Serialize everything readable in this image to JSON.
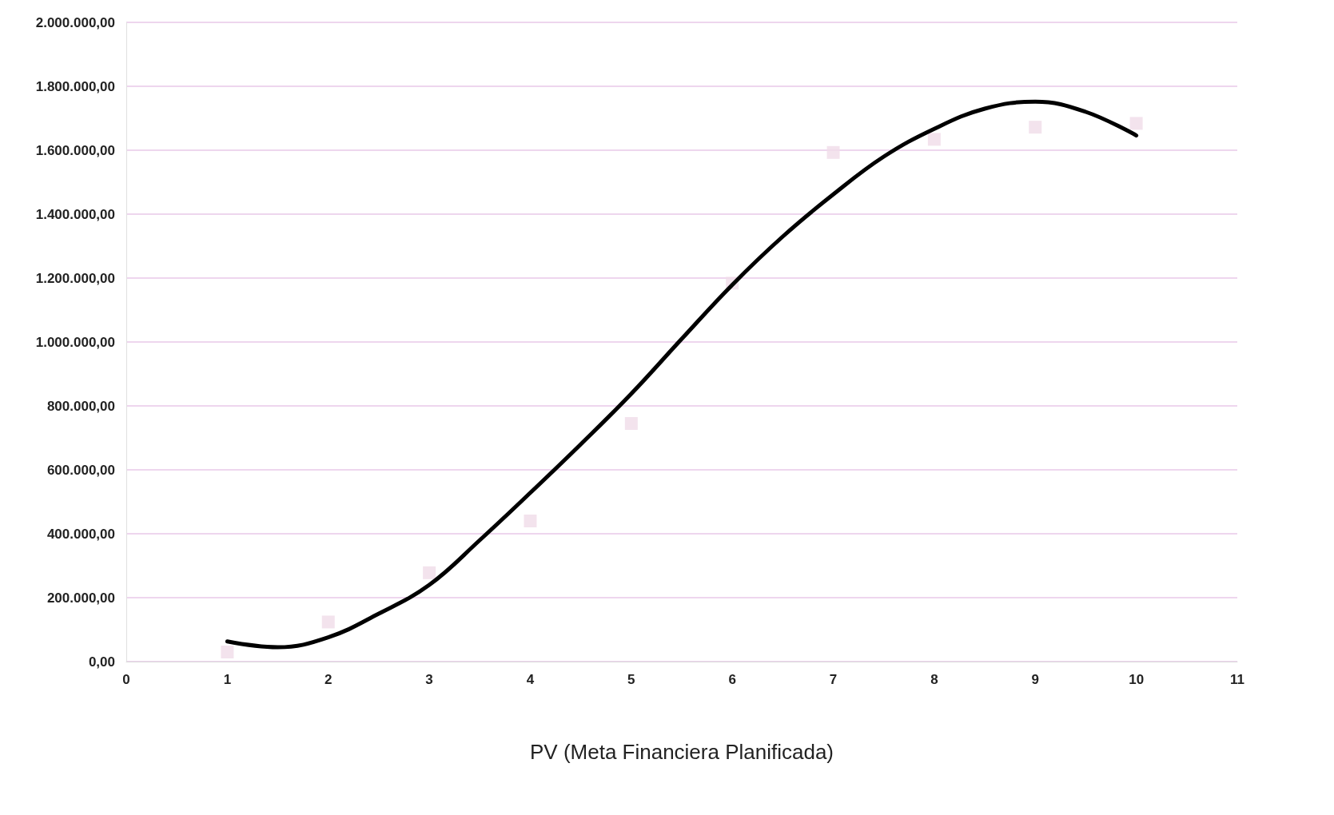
{
  "chart_data": {
    "type": "line",
    "xlabel": "PV (Meta Financiera Planificada)",
    "xlim": [
      0,
      11
    ],
    "xticks": [
      0,
      1,
      2,
      3,
      4,
      5,
      6,
      7,
      8,
      9,
      10,
      11
    ],
    "ylim": [
      0,
      2000000
    ],
    "yticks": [
      {
        "value": 0,
        "label": "0,00"
      },
      {
        "value": 200000,
        "label": "200.000,00"
      },
      {
        "value": 400000,
        "label": "400.000,00"
      },
      {
        "value": 600000,
        "label": "600.000,00"
      },
      {
        "value": 800000,
        "label": "800.000,00"
      },
      {
        "value": 1000000,
        "label": "1.000.000,00"
      },
      {
        "value": 1200000,
        "label": "1.200.000,00"
      },
      {
        "value": 1400000,
        "label": "1.400.000,00"
      },
      {
        "value": 1600000,
        "label": "1.600.000,00"
      },
      {
        "value": 1800000,
        "label": "1.800.000,00"
      },
      {
        "value": 2000000,
        "label": "2.000.000,00"
      }
    ],
    "grid": "y",
    "series": [
      {
        "type": "scatter",
        "marker": "square",
        "color": "#f0dce8",
        "x": [
          1,
          2,
          3,
          4,
          5,
          6,
          7,
          8,
          9,
          10
        ],
        "values": [
          30000,
          124000,
          278000,
          440000,
          745000,
          1184000,
          1593000,
          1634000,
          1672000,
          1684000
        ]
      },
      {
        "marker": "none",
        "color": "#000000",
        "x": [
          1,
          1.5,
          2,
          2.5,
          3,
          3.5,
          4,
          4.5,
          5,
          5.5,
          6,
          6.5,
          7,
          7.5,
          8,
          8.5,
          9,
          9.5,
          10
        ],
        "values": [
          63000,
          45000,
          76000,
          150000,
          240000,
          380000,
          528000,
          680000,
          838000,
          1010000,
          1179000,
          1330000,
          1462000,
          1580000,
          1667000,
          1730000,
          1752000,
          1720000,
          1646000
        ]
      }
    ]
  }
}
